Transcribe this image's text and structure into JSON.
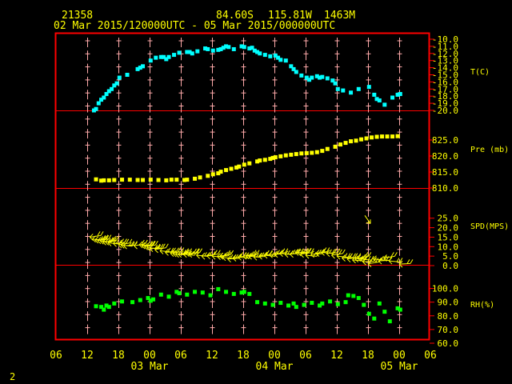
{
  "header": {
    "station": "21358",
    "lat": "84.60S",
    "lon": "115.81W",
    "elev": "1463M",
    "period": "02 Mar 2015/120000UTC - 05 Mar 2015/000000UTC"
  },
  "footer": {
    "page": "2"
  },
  "xaxis": {
    "hours": [
      "06",
      "12",
      "18",
      "00",
      "06",
      "12",
      "18",
      "00",
      "06",
      "12",
      "18",
      "00",
      "06"
    ],
    "days": [
      "03 Mar",
      "04 Mar",
      "05 Mar"
    ]
  },
  "colors": {
    "frame": "#ff0000",
    "text": "#ffff00",
    "tick": "#ffaaaa",
    "temp": "#00ffff",
    "pre": "#ffff00",
    "wind": "#ffff00",
    "rh": "#00ff00"
  },
  "chart_data": [
    {
      "type": "scatter",
      "panel": "temperature",
      "label": "T(C)",
      "yticks": [
        "-10.0",
        "-11.0",
        "-12.0",
        "-13.0",
        "-14.0",
        "-15.0",
        "-16.0",
        "-17.0",
        "-18.0",
        "-19.0",
        "-20.0"
      ],
      "ylim": [
        -20,
        -10
      ],
      "x": [
        13.3,
        13.7,
        14.2,
        14.7,
        15.2,
        15.7,
        16.2,
        16.7,
        17.2,
        17.7,
        18.2,
        19.7,
        21.7,
        22.2,
        22.7,
        24.2,
        25.2,
        26.2,
        26.7,
        27.2,
        27.7,
        28.7,
        29.7,
        31.2,
        31.7,
        32.2,
        33.2,
        34.7,
        35.2,
        36.2,
        37.2,
        37.7,
        38.2,
        38.7,
        39.2,
        40.2,
        41.7,
        42.2,
        43.2,
        43.7,
        44.2,
        44.7,
        45.2,
        46.2,
        47.2,
        48.2,
        48.7,
        49.2,
        50.2,
        51.2,
        51.7,
        52.2,
        53.2,
        54.2,
        54.7,
        55.2,
        56.2,
        56.7,
        57.2,
        58.2,
        59.2,
        59.7,
        60.2,
        61.2,
        62.7,
        64.2,
        66.2,
        67.2,
        67.7,
        68.2,
        69.2,
        70.7,
        71.7,
        72.2
      ],
      "y": [
        -20.0,
        -19.8,
        -19.0,
        -18.5,
        -18.2,
        -17.7,
        -17.3,
        -17.0,
        -16.5,
        -16.2,
        -15.4,
        -15.0,
        -14.2,
        -14.0,
        -13.8,
        -13.0,
        -12.6,
        -12.5,
        -12.5,
        -12.8,
        -12.5,
        -12.2,
        -11.9,
        -11.8,
        -11.8,
        -12.0,
        -11.7,
        -11.3,
        -11.4,
        -11.6,
        -11.5,
        -11.4,
        -11.2,
        -11.0,
        -11.1,
        -11.4,
        -11.0,
        -11.1,
        -11.3,
        -11.2,
        -11.6,
        -11.8,
        -12.0,
        -12.2,
        -12.4,
        -12.3,
        -12.6,
        -12.9,
        -13.0,
        -13.8,
        -14.2,
        -14.6,
        -15.1,
        -15.4,
        -15.7,
        -15.4,
        -15.2,
        -15.4,
        -15.3,
        -15.5,
        -15.8,
        -16.2,
        -17.0,
        -17.2,
        -17.5,
        -17.0,
        -16.7,
        -17.8,
        -18.4,
        -18.6,
        -19.2,
        -18.2,
        -17.8,
        -17.7
      ]
    },
    {
      "type": "scatter",
      "panel": "pressure",
      "label": "Pre (mb)",
      "yticks": [
        "810.0",
        "815.0",
        "820.0",
        "825.0"
      ],
      "ylim": [
        810,
        828
      ],
      "x": [
        13.7,
        14.7,
        15.2,
        16.2,
        17.2,
        18.7,
        20.2,
        21.7,
        22.7,
        24.2,
        25.7,
        27.2,
        28.2,
        29.2,
        30.7,
        31.2,
        32.7,
        33.7,
        35.2,
        36.2,
        37.2,
        37.7,
        38.7,
        39.7,
        40.7,
        41.2,
        42.2,
        43.2,
        44.7,
        45.2,
        46.2,
        47.2,
        47.7,
        48.2,
        49.2,
        50.2,
        51.2,
        52.2,
        53.2,
        54.2,
        55.2,
        56.2,
        57.2,
        58.2,
        59.7,
        60.7,
        61.7,
        62.7,
        63.7,
        64.7,
        65.7,
        66.7,
        67.7,
        68.7,
        69.7,
        70.7,
        71.7
      ],
      "y": [
        812.7,
        812.3,
        812.4,
        812.4,
        812.5,
        812.6,
        812.6,
        812.5,
        812.5,
        812.6,
        812.5,
        812.4,
        812.6,
        812.6,
        812.5,
        812.6,
        812.9,
        813.3,
        813.8,
        814.3,
        814.6,
        815.1,
        815.6,
        816.0,
        816.4,
        816.7,
        817.3,
        817.7,
        818.3,
        818.6,
        818.8,
        819.1,
        819.4,
        819.6,
        819.9,
        820.2,
        820.4,
        820.6,
        820.8,
        820.9,
        821.0,
        821.2,
        821.6,
        822.2,
        822.9,
        823.6,
        824.1,
        824.6,
        824.8,
        825.2,
        825.5,
        825.8,
        826.0,
        826.1,
        826.1,
        826.1,
        826.2
      ]
    },
    {
      "type": "barbs",
      "panel": "wind",
      "label": "SPD(MPS)",
      "yticks": [
        "0.0",
        "5.0",
        "10.0",
        "15.0",
        "20.0",
        "25.0"
      ],
      "ylim": [
        0,
        27
      ],
      "x": [
        12.5,
        13.0,
        13.5,
        14.0,
        14.5,
        15.0,
        15.5,
        16.0,
        17.0,
        18.0,
        18.5,
        19.0,
        21.0,
        22.0,
        22.5,
        23.0,
        23.5,
        24.0,
        25.0,
        26.0,
        27.0,
        28.0,
        28.5,
        29.0,
        29.5,
        30.5,
        31.0,
        31.5,
        33.0,
        34.0,
        35.0,
        36.0,
        37.0,
        37.5,
        38.0,
        39.0,
        40.0,
        41.0,
        42.0,
        42.5,
        43.0,
        44.0,
        45.0,
        46.0,
        47.0,
        48.0,
        49.0,
        50.0,
        51.0,
        52.0,
        52.5,
        53.0,
        54.0,
        55.0,
        56.0,
        57.0,
        58.0,
        59.0,
        60.0,
        61.0,
        62.0,
        63.0,
        63.5,
        64.0,
        64.5,
        65.0,
        66.0,
        67.0,
        68.0,
        69.0,
        70.0,
        72.0
      ],
      "y": [
        15.0,
        14.0,
        13.5,
        13.2,
        13.0,
        12.5,
        12.5,
        12.0,
        11.7,
        11.0,
        10.8,
        10.5,
        10.5,
        11.0,
        10.5,
        10.0,
        9.5,
        9.0,
        8.5,
        7.8,
        7.0,
        6.5,
        6.3,
        6.0,
        6.0,
        6.0,
        6.5,
        6.0,
        5.5,
        5.0,
        5.2,
        5.0,
        4.8,
        5.0,
        4.3,
        3.5,
        4.0,
        4.5,
        5.0,
        5.2,
        5.0,
        4.5,
        5.0,
        5.5,
        5.8,
        6.0,
        6.5,
        6.0,
        6.0,
        7.0,
        6.8,
        6.0,
        5.5,
        6.0,
        6.5,
        7.0,
        6.5,
        5.5,
        5.0,
        4.0,
        3.5,
        3.0,
        3.5,
        4.0,
        3.5,
        2.0,
        1.0,
        3.5,
        2.5,
        4.0,
        2.5,
        0.8
      ],
      "isolated": {
        "x": 66.0,
        "y": 23.5
      }
    },
    {
      "type": "scatter",
      "panel": "humidity",
      "label": "RH(%)",
      "yticks": [
        "60.0",
        "70.0",
        "80.0",
        "90.0",
        "100.0"
      ],
      "ylim": [
        60,
        105
      ],
      "x": [
        13.7,
        14.7,
        15.2,
        15.7,
        16.2,
        17.2,
        18.7,
        20.7,
        22.2,
        23.7,
        24.2,
        24.7,
        26.2,
        27.7,
        29.2,
        29.7,
        31.2,
        32.7,
        34.2,
        35.7,
        37.2,
        38.7,
        40.2,
        41.7,
        42.2,
        43.2,
        44.7,
        46.2,
        47.7,
        49.2,
        50.7,
        51.7,
        52.2,
        53.7,
        55.2,
        56.7,
        57.2,
        58.7,
        60.2,
        61.7,
        62.2,
        63.2,
        64.2,
        65.2,
        66.2,
        67.2,
        68.2,
        69.2,
        70.2,
        71.7,
        72.2
      ],
      "y": [
        87.0,
        86.5,
        84.5,
        87.5,
        86.5,
        89.0,
        90.5,
        90.0,
        91.5,
        93.0,
        91.0,
        92.0,
        95.5,
        94.0,
        97.5,
        96.5,
        95.5,
        97.5,
        97.0,
        95.0,
        99.5,
        97.5,
        96.0,
        97.0,
        97.5,
        96.0,
        90.0,
        89.0,
        88.0,
        89.5,
        87.5,
        89.0,
        86.5,
        88.0,
        89.5,
        87.5,
        89.0,
        90.5,
        88.5,
        90.0,
        95.0,
        94.5,
        93.0,
        88.0,
        81.5,
        78.0,
        89.0,
        83.0,
        76.0,
        85.5,
        84.5
      ]
    }
  ]
}
